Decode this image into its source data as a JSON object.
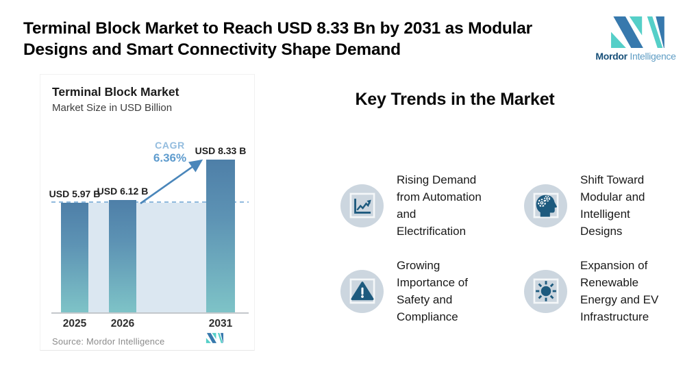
{
  "header": {
    "title": "Terminal Block Market to Reach USD 8.33 Bn by 2031 as Modular\nDesigns and Smart Connectivity Shape Demand",
    "brand": {
      "bold": "Mordor",
      "light": "Intelligence"
    }
  },
  "chart_data": {
    "type": "bar",
    "title": "Terminal Block Market",
    "subtitle": "Market Size in USD Billion",
    "categories": [
      "2025",
      "2026",
      "2031"
    ],
    "values": [
      5.97,
      6.12,
      8.33
    ],
    "bar_labels": [
      "USD 5.97 B",
      "USD 6.12 B",
      "USD 8.33 B"
    ],
    "cagr": {
      "label": "CAGR",
      "value": "6.36%"
    },
    "source": "Source: Mordor Intelligence",
    "xlabel": "",
    "ylabel": "",
    "ylim": [
      0,
      8.33
    ],
    "layout": {
      "grid": false,
      "dashed_reference_at": 5.97,
      "legend": "none"
    },
    "colors": {
      "bar_top": "#4e7fa8",
      "bar_bottom": "#7ec3c7",
      "backdrop": "#dbe7f1",
      "dashed_line": "#8fb9dd",
      "arrow": "#4a86ba",
      "cagr_text": "#5f9cce"
    }
  },
  "trends": {
    "heading": "Key Trends in the Market",
    "items": [
      {
        "icon": "line-chart-icon",
        "label": "Rising Demand\nfrom Automation\nand\nElectrification"
      },
      {
        "icon": "head-gears-icon",
        "label": "Shift Toward\nModular and\nIntelligent\nDesigns"
      },
      {
        "icon": "warning-triangle-icon",
        "label": "Growing\nImportance of\nSafety and\nCompliance"
      },
      {
        "icon": "sun-icon",
        "label": "Expansion of\nRenewable\nEnergy and EV\nInfrastructure"
      }
    ],
    "colors": {
      "icon_circle": "#ccd6df",
      "icon_glyph": "#1d5a7e"
    }
  },
  "brand_colors": {
    "logo_blue": "#3779ad",
    "logo_teal": "#55cfc8"
  }
}
